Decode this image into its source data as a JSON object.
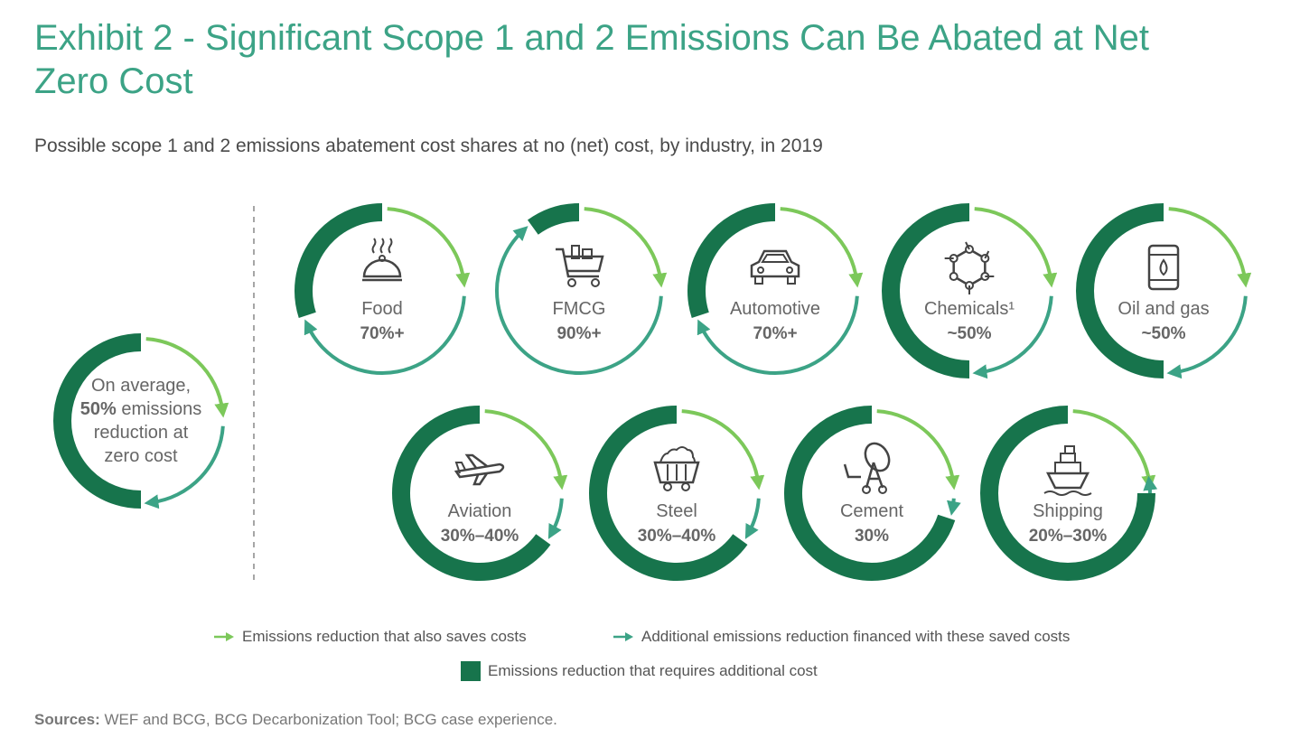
{
  "title": "Exhibit 2 - Significant Scope 1 and 2 Emissions Can Be Abated at Net Zero Cost",
  "subtitle": "Possible scope 1 and 2 emissions abatement cost shares at no (net) cost, by industry, in 2019",
  "colors": {
    "title": "#3ca386",
    "light_green": "#7cc85a",
    "teal": "#3ca386",
    "dark_green": "#17744c"
  },
  "chart_data": {
    "type": "donut-ring",
    "average": {
      "lines": [
        "On average,",
        "50% emissions",
        "reduction at",
        "zero cost"
      ],
      "bold": "50%",
      "share": 50
    },
    "series_legend": [
      "Emissions reduction that also saves costs",
      "Additional emissions reduction financed with these saved costs",
      "Emissions reduction that requires additional cost"
    ],
    "industries": [
      {
        "name": "Food",
        "label": "70%+",
        "share": 70,
        "icon": "food-dish-icon"
      },
      {
        "name": "FMCG",
        "label": "90%+",
        "share": 90,
        "icon": "shopping-cart-icon"
      },
      {
        "name": "Automotive",
        "label": "70%+",
        "share": 70,
        "icon": "car-icon"
      },
      {
        "name": "Chemicals¹",
        "label": "~50%",
        "share": 50,
        "icon": "molecule-icon"
      },
      {
        "name": "Oil and gas",
        "label": "~50%",
        "share": 50,
        "icon": "oil-barrel-icon"
      },
      {
        "name": "Aviation",
        "label": "30%–40%",
        "share": 35,
        "icon": "airplane-icon"
      },
      {
        "name": "Steel",
        "label": "30%–40%",
        "share": 35,
        "icon": "mine-cart-icon"
      },
      {
        "name": "Cement",
        "label": "30%",
        "share": 30,
        "icon": "cement-mixer-icon"
      },
      {
        "name": "Shipping",
        "label": "20%–30%",
        "share": 25,
        "icon": "ship-icon"
      }
    ]
  },
  "legend": {
    "saves_costs": "Emissions reduction that also saves costs",
    "financed": "Additional emissions reduction financed with these saved costs",
    "additional_cost": "Emissions reduction that requires additional cost"
  },
  "sources": {
    "label": "Sources:",
    "text": " WEF and BCG, BCG Decarbonization Tool; BCG case experience."
  }
}
